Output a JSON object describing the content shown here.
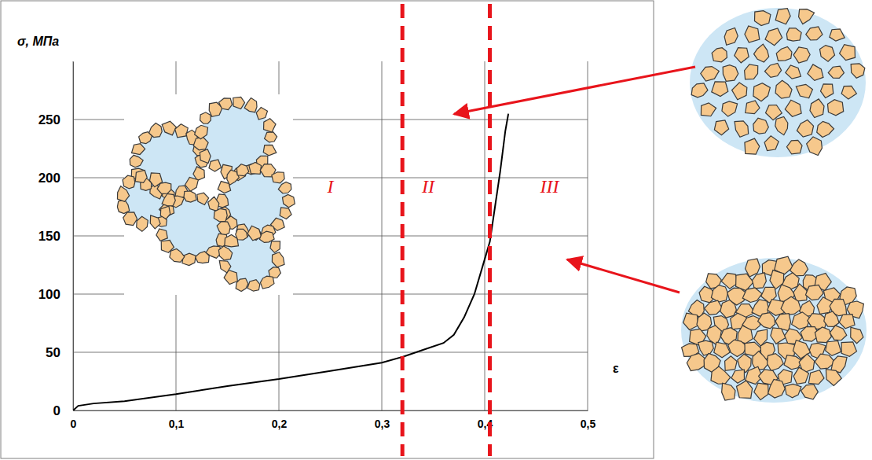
{
  "chart_data": {
    "type": "line",
    "x_label": "ε",
    "y_label": "σ, МПа",
    "x": [
      0,
      0.005,
      0.02,
      0.05,
      0.1,
      0.15,
      0.2,
      0.25,
      0.3,
      0.32,
      0.34,
      0.36,
      0.37,
      0.38,
      0.39,
      0.4,
      0.405,
      0.41,
      0.415,
      0.42,
      0.423
    ],
    "values": [
      0,
      4,
      6,
      8,
      14,
      21,
      27,
      34,
      41,
      46,
      52,
      58,
      65,
      80,
      100,
      130,
      145,
      175,
      205,
      240,
      255
    ],
    "color": "#000000",
    "xlim": [
      0,
      0.5
    ],
    "ylim": [
      0,
      300
    ],
    "xticks": [
      0,
      {
        "value": 0.1,
        "label": "0,1"
      },
      {
        "value": 0.2,
        "label": "0,2"
      },
      {
        "value": 0.3,
        "label": "0,3"
      },
      {
        "value": 0.4,
        "label": "0,4"
      },
      {
        "value": 0.5,
        "label": "0,5"
      }
    ],
    "yticks": [
      0,
      50,
      100,
      150,
      200,
      250
    ],
    "grid": true,
    "boundaries": [
      0.32,
      0.405
    ],
    "annotations": [
      {
        "text": "I",
        "x": 0.25,
        "y": 187
      },
      {
        "text": "II",
        "x": 0.345,
        "y": 187
      },
      {
        "text": "III",
        "x": 0.463,
        "y": 187
      }
    ]
  }
}
